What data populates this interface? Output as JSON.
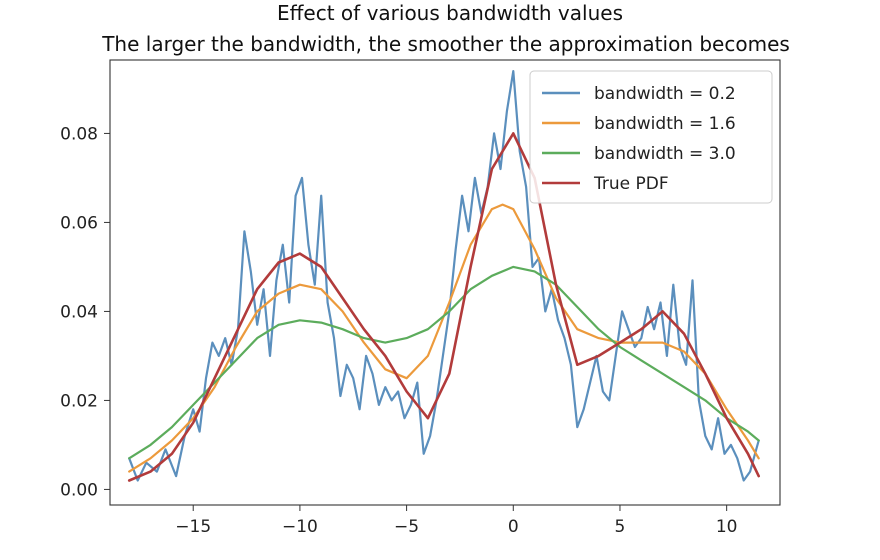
{
  "chart_data": {
    "type": "line",
    "title": "Effect of various bandwidth values",
    "subtitle": "The larger the bandwidth, the smoother the approximation becomes",
    "xlabel": "",
    "ylabel": "",
    "xlim": [
      -18.9,
      12.5
    ],
    "ylim": [
      -0.0035,
      0.0965
    ],
    "xticks": [
      -15,
      -10,
      -5,
      0,
      5,
      10
    ],
    "xtick_labels": [
      "−15",
      "−10",
      "−5",
      "0",
      "5",
      "10"
    ],
    "yticks": [
      0.0,
      0.02,
      0.04,
      0.06,
      0.08
    ],
    "ytick_labels": [
      "0.00",
      "0.02",
      "0.04",
      "0.06",
      "0.08"
    ],
    "grid": false,
    "legend_position": "top-right",
    "series": [
      {
        "name": "bandwidth = 0.2",
        "color": "#5b8fbd",
        "x": [
          -18,
          -17.6,
          -17.2,
          -16.7,
          -16.3,
          -15.8,
          -15.4,
          -15.0,
          -14.7,
          -14.4,
          -14.1,
          -13.8,
          -13.5,
          -13.2,
          -12.9,
          -12.6,
          -12.3,
          -12.0,
          -11.7,
          -11.4,
          -11.1,
          -10.8,
          -10.5,
          -10.2,
          -9.9,
          -9.6,
          -9.3,
          -9.0,
          -8.7,
          -8.4,
          -8.1,
          -7.8,
          -7.5,
          -7.2,
          -6.9,
          -6.6,
          -6.3,
          -6.0,
          -5.7,
          -5.4,
          -5.1,
          -4.8,
          -4.5,
          -4.2,
          -3.9,
          -3.6,
          -3.3,
          -3.0,
          -2.7,
          -2.4,
          -2.1,
          -1.8,
          -1.5,
          -1.2,
          -0.9,
          -0.6,
          -0.3,
          0.0,
          0.3,
          0.6,
          0.9,
          1.2,
          1.5,
          1.8,
          2.1,
          2.4,
          2.7,
          3.0,
          3.3,
          3.6,
          3.9,
          4.2,
          4.5,
          4.8,
          5.1,
          5.4,
          5.7,
          6.0,
          6.3,
          6.6,
          6.9,
          7.2,
          7.5,
          7.8,
          8.1,
          8.4,
          8.7,
          9.0,
          9.3,
          9.6,
          9.9,
          10.2,
          10.5,
          10.8,
          11.1,
          11.5
        ],
        "y": [
          0.007,
          0.002,
          0.006,
          0.004,
          0.009,
          0.003,
          0.012,
          0.018,
          0.013,
          0.025,
          0.033,
          0.03,
          0.034,
          0.028,
          0.036,
          0.058,
          0.049,
          0.037,
          0.045,
          0.03,
          0.047,
          0.055,
          0.042,
          0.066,
          0.07,
          0.055,
          0.046,
          0.066,
          0.042,
          0.034,
          0.021,
          0.028,
          0.025,
          0.018,
          0.03,
          0.026,
          0.019,
          0.023,
          0.02,
          0.022,
          0.016,
          0.019,
          0.024,
          0.008,
          0.012,
          0.02,
          0.03,
          0.04,
          0.054,
          0.066,
          0.058,
          0.07,
          0.062,
          0.068,
          0.08,
          0.072,
          0.085,
          0.094,
          0.076,
          0.068,
          0.05,
          0.052,
          0.04,
          0.045,
          0.038,
          0.034,
          0.028,
          0.014,
          0.018,
          0.024,
          0.03,
          0.022,
          0.02,
          0.03,
          0.04,
          0.036,
          0.032,
          0.034,
          0.041,
          0.036,
          0.042,
          0.03,
          0.046,
          0.032,
          0.028,
          0.047,
          0.02,
          0.012,
          0.009,
          0.016,
          0.008,
          0.01,
          0.007,
          0.002,
          0.004,
          0.011
        ]
      },
      {
        "name": "bandwidth = 1.6",
        "color": "#ec9a3c",
        "x": [
          -18,
          -17,
          -16,
          -15,
          -14,
          -13,
          -12,
          -11,
          -10,
          -9,
          -8,
          -7,
          -6,
          -5,
          -4,
          -3,
          -2,
          -1,
          -0.5,
          0,
          1,
          2,
          3,
          4,
          5,
          6,
          7,
          8,
          9,
          10,
          11,
          11.5
        ],
        "y": [
          0.004,
          0.007,
          0.011,
          0.016,
          0.023,
          0.032,
          0.04,
          0.044,
          0.046,
          0.045,
          0.04,
          0.033,
          0.027,
          0.025,
          0.03,
          0.042,
          0.055,
          0.063,
          0.064,
          0.063,
          0.054,
          0.043,
          0.036,
          0.034,
          0.033,
          0.033,
          0.033,
          0.031,
          0.026,
          0.018,
          0.011,
          0.007
        ]
      },
      {
        "name": "bandwidth = 3.0",
        "color": "#5cac5c",
        "x": [
          -18,
          -17,
          -16,
          -15,
          -14,
          -13,
          -12,
          -11,
          -10,
          -9,
          -8,
          -7,
          -6,
          -5,
          -4,
          -3,
          -2,
          -1,
          0,
          1,
          2,
          3,
          4,
          5,
          6,
          7,
          8,
          9,
          10,
          11,
          11.5
        ],
        "y": [
          0.007,
          0.01,
          0.014,
          0.019,
          0.024,
          0.029,
          0.034,
          0.037,
          0.038,
          0.0375,
          0.036,
          0.034,
          0.033,
          0.034,
          0.036,
          0.04,
          0.045,
          0.048,
          0.05,
          0.049,
          0.046,
          0.041,
          0.036,
          0.032,
          0.029,
          0.026,
          0.023,
          0.02,
          0.016,
          0.013,
          0.011
        ]
      },
      {
        "name": "True PDF",
        "color": "#b23b3b",
        "x": [
          -18,
          -17,
          -16,
          -15,
          -14,
          -13,
          -12,
          -11,
          -10,
          -9,
          -8,
          -7,
          -6,
          -5,
          -4,
          -3,
          -2,
          -1,
          0,
          1,
          2,
          3,
          4,
          5,
          6,
          7,
          8,
          9,
          10,
          11,
          11.5
        ],
        "y": [
          0.002,
          0.004,
          0.008,
          0.015,
          0.025,
          0.035,
          0.045,
          0.051,
          0.053,
          0.05,
          0.043,
          0.036,
          0.03,
          0.022,
          0.016,
          0.026,
          0.05,
          0.072,
          0.08,
          0.07,
          0.046,
          0.028,
          0.03,
          0.033,
          0.036,
          0.04,
          0.035,
          0.026,
          0.016,
          0.008,
          0.003
        ]
      }
    ]
  }
}
